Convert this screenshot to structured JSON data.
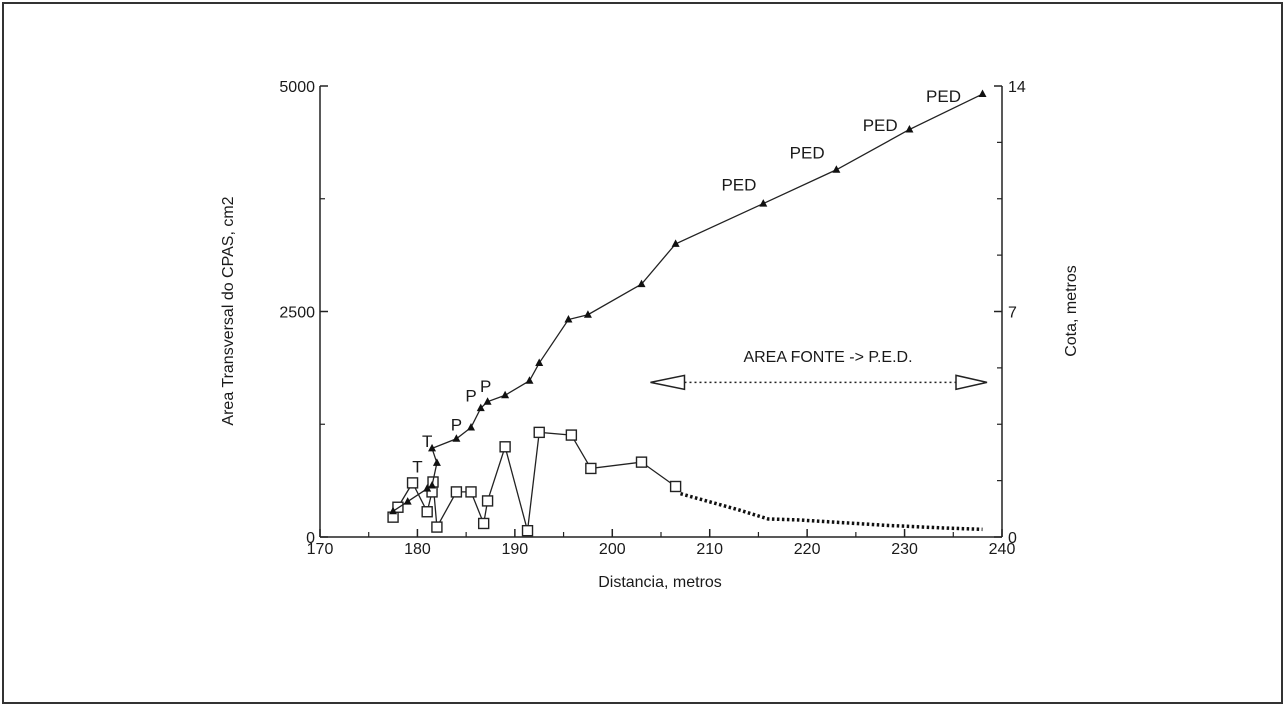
{
  "chart_data": {
    "type": "line",
    "title": "",
    "xlabel": "Distancia, metros",
    "ylabel": "Area Transversal do CPAS, cm2",
    "y2label": "Cota, metros",
    "xlim": [
      170,
      240
    ],
    "ylim": [
      0,
      5000
    ],
    "y2lim": [
      0,
      14
    ],
    "xticks": [
      "170",
      "180",
      "190",
      "200",
      "210",
      "220",
      "230",
      "240"
    ],
    "yticks": [
      "0",
      "2500",
      "5000"
    ],
    "y2ticks": [
      "0",
      "7",
      "14"
    ],
    "annotation": {
      "text": "AREA FONTE -> P.E.D.",
      "from_x": 207,
      "to_x": 240,
      "y2": 4.8
    },
    "series": [
      {
        "axis": "left",
        "marker": "square",
        "x": [
          177.5,
          178,
          179.5,
          181,
          181.5,
          181.6,
          182,
          184,
          185.5,
          186.8,
          187.2,
          189,
          191.3,
          192.5,
          195.8,
          197.8,
          203,
          206.5
        ],
        "values": [
          220,
          330,
          600,
          280,
          500,
          610,
          110,
          500,
          500,
          150,
          400,
          1000,
          70,
          1160,
          1130,
          760,
          830,
          560
        ]
      },
      {
        "axis": "left",
        "style": "dotted",
        "x": [
          207,
          210,
          213,
          216,
          219,
          222,
          225,
          228,
          231,
          234,
          238
        ],
        "values": [
          480,
          390,
          300,
          200,
          190,
          170,
          150,
          130,
          115,
          100,
          85
        ]
      },
      {
        "axis": "right",
        "marker": "triangle",
        "x": [
          177.5,
          179,
          181,
          181.5,
          182,
          181.5,
          184,
          185.5,
          186.5,
          187.2,
          189,
          191.5,
          192.5,
          195.5,
          197.5,
          203,
          206.5,
          215.5,
          223,
          230.5,
          238
        ],
        "values": [
          0.8,
          1.1,
          1.5,
          1.6,
          2.3,
          2.75,
          3.05,
          3.4,
          4.0,
          4.2,
          4.4,
          4.85,
          5.4,
          6.75,
          6.9,
          7.85,
          9.1,
          10.35,
          11.4,
          12.65,
          13.75
        ]
      }
    ],
    "point_labels": [
      {
        "text": "T",
        "x": 181,
        "y2": 2.8
      },
      {
        "text": "T",
        "x": 180,
        "y2": 2.0
      },
      {
        "text": "P",
        "x": 184,
        "y2": 3.3
      },
      {
        "text": "P",
        "x": 185.5,
        "y2": 4.2
      },
      {
        "text": "P",
        "x": 187,
        "y2": 4.5
      },
      {
        "text": "PED",
        "x": 213,
        "y2": 10.75
      },
      {
        "text": "PED",
        "x": 220,
        "y2": 11.75
      },
      {
        "text": "PED",
        "x": 227.5,
        "y2": 12.6
      },
      {
        "text": "PED",
        "x": 234,
        "y2": 13.5
      }
    ]
  }
}
